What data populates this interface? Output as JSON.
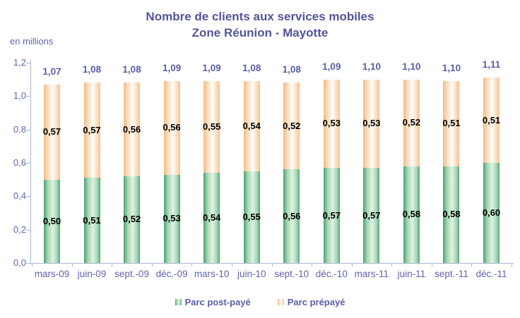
{
  "title": {
    "line1": "Nombre de clients aux services mobiles",
    "line2": "Zone Réunion - Mayotte"
  },
  "unit_label": "en millions",
  "legend": {
    "items": [
      {
        "label": "Parc post-payé",
        "swatch": "green-cylinder"
      },
      {
        "label": "Parc prépayé",
        "swatch": "peach-cylinder"
      }
    ]
  },
  "colors": {
    "title_text": "#54549B",
    "axis_labels": "#6064AC",
    "total_labels": "#5A5FA5",
    "value_labels": "#000000",
    "axis_line": "#A9B9D2",
    "postpaye_edge": "#4CA170",
    "postpaye_center": "#DFF3E3",
    "prepaye_edge": "#F2BC89",
    "prepaye_center": "#FFFDF8"
  },
  "chart_data": {
    "type": "bar",
    "stacked": true,
    "title": "Nombre de clients aux services mobiles — Zone Réunion - Mayotte",
    "unit": "en millions",
    "categories": [
      "mars-09",
      "juin-09",
      "sept.-09",
      "déc.-09",
      "mars-10",
      "juin-10",
      "sept.-10",
      "déc.-10",
      "mars-11",
      "juin-11",
      "sept.-11",
      "déc.-11"
    ],
    "series": [
      {
        "name": "Parc post-payé",
        "values": [
          0.5,
          0.51,
          0.52,
          0.53,
          0.54,
          0.55,
          0.56,
          0.57,
          0.57,
          0.58,
          0.58,
          0.6
        ],
        "labels": [
          "0,50",
          "0,51",
          "0,52",
          "0,53",
          "0,54",
          "0,55",
          "0,56",
          "0,57",
          "0,57",
          "0,58",
          "0,58",
          "0,60"
        ]
      },
      {
        "name": "Parc prépayé",
        "values": [
          0.57,
          0.57,
          0.56,
          0.56,
          0.55,
          0.54,
          0.52,
          0.53,
          0.53,
          0.52,
          0.51,
          0.51
        ],
        "labels": [
          "0,57",
          "0,57",
          "0,56",
          "0,56",
          "0,55",
          "0,54",
          "0,52",
          "0,53",
          "0,53",
          "0,52",
          "0,51",
          "0,51"
        ]
      }
    ],
    "total_labels": [
      "1,07",
      "1,08",
      "1,08",
      "1,09",
      "1,09",
      "1,08",
      "1,08",
      "1,09",
      "1,10",
      "1,10",
      "1,10",
      "1,11"
    ],
    "yticks": {
      "values": [
        0,
        0.2,
        0.4,
        0.6,
        0.8,
        1.0,
        1.2
      ],
      "labels": [
        "0,0",
        "0,2",
        "0,4",
        "0,6",
        "0,8",
        "1,0",
        "1,2"
      ]
    },
    "ylim": [
      0,
      1.2
    ],
    "grid": false,
    "legend_position": "bottom"
  }
}
